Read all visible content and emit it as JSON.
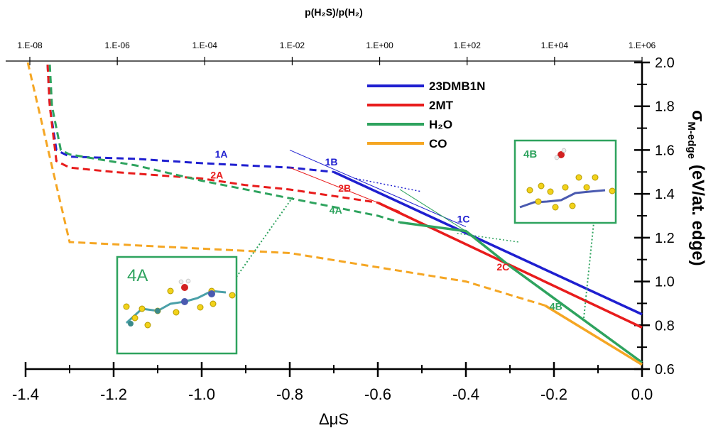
{
  "chart_data": {
    "type": "line",
    "top_axis_label": "p(H₂S)/p(H₂)",
    "top_ticks": [
      "1.E-08",
      "1.E-06",
      "1.E-04",
      "1.E-02",
      "1.E+00",
      "1.E+02",
      "1.E+04",
      "1.E+06"
    ],
    "xlabel": "ΔμS",
    "ylabel_symbol": "σ",
    "ylabel_sub": "M-edge",
    "ylabel_units": "(eV/at. edge)",
    "xlim": [
      -1.4,
      0.0
    ],
    "ylim": [
      0.6,
      2.0
    ],
    "xticks": [
      "-1.4",
      "-1.2",
      "-1.0",
      "-0.8",
      "-0.6",
      "-0.4",
      "-0.2",
      "0.0"
    ],
    "yticks": [
      "0.6",
      "0.8",
      "1.0",
      "1.2",
      "1.4",
      "1.6",
      "1.8",
      "2.0"
    ],
    "legend_position": "top-center",
    "series": [
      {
        "name": "23DMB1N",
        "color": "#1f1fd0",
        "dashed": [
          [
            -1.35,
            1.99
          ],
          [
            -1.345,
            1.8
          ],
          [
            -1.33,
            1.6
          ],
          [
            -1.3,
            1.57
          ],
          [
            -1.15,
            1.56
          ],
          [
            -1.0,
            1.54
          ],
          [
            -0.9,
            1.53
          ],
          [
            -0.8,
            1.52
          ],
          [
            -0.7,
            1.5
          ]
        ],
        "solid": [
          [
            -0.7,
            1.5
          ],
          [
            0.0,
            0.85
          ]
        ]
      },
      {
        "name": "2MT",
        "color": "#e81c1c",
        "dashed": [
          [
            -1.35,
            1.99
          ],
          [
            -1.345,
            1.8
          ],
          [
            -1.33,
            1.55
          ],
          [
            -1.3,
            1.52
          ],
          [
            -1.2,
            1.5
          ],
          [
            -1.0,
            1.47
          ],
          [
            -0.9,
            1.44
          ],
          [
            -0.8,
            1.42
          ],
          [
            -0.7,
            1.39
          ],
          [
            -0.6,
            1.36
          ]
        ],
        "solid": [
          [
            -0.6,
            1.36
          ],
          [
            0.0,
            0.79
          ]
        ]
      },
      {
        "name": "H₂O",
        "color": "#2ea35e",
        "dashed": [
          [
            -1.345,
            1.99
          ],
          [
            -1.34,
            1.8
          ],
          [
            -1.32,
            1.6
          ],
          [
            -1.3,
            1.58
          ],
          [
            -1.15,
            1.53
          ],
          [
            -1.0,
            1.46
          ],
          [
            -0.8,
            1.38
          ],
          [
            -0.6,
            1.3
          ],
          [
            -0.55,
            1.27
          ]
        ],
        "solid": [
          [
            -0.55,
            1.27
          ],
          [
            -0.4,
            1.23
          ],
          [
            -0.3,
            1.07
          ],
          [
            0.0,
            0.63
          ]
        ]
      },
      {
        "name": "CO",
        "color": "#f5a623",
        "dashed": [
          [
            -1.395,
            2.0
          ],
          [
            -1.3,
            1.18
          ],
          [
            -0.8,
            1.13
          ],
          [
            -0.4,
            1.0
          ],
          [
            -0.22,
            0.89
          ]
        ],
        "solid": [
          [
            -0.22,
            0.89
          ],
          [
            0.0,
            0.62
          ]
        ]
      }
    ],
    "annotations": [
      {
        "text": "1A",
        "x": -0.97,
        "y": 1.565,
        "color": "#1f1fd0"
      },
      {
        "text": "2A",
        "x": -0.98,
        "y": 1.47,
        "color": "#e81c1c"
      },
      {
        "text": "1B",
        "x": -0.72,
        "y": 1.53,
        "color": "#1f1fd0"
      },
      {
        "text": "2B",
        "x": -0.69,
        "y": 1.41,
        "color": "#e81c1c"
      },
      {
        "text": "4A",
        "x": -0.71,
        "y": 1.31,
        "color": "#2ea35e"
      },
      {
        "text": "1C",
        "x": -0.42,
        "y": 1.27,
        "color": "#1f1fd0"
      },
      {
        "text": "2C",
        "x": -0.33,
        "y": 1.05,
        "color": "#e81c1c"
      },
      {
        "text": "4B",
        "x": -0.21,
        "y": 0.87,
        "color": "#2ea35e"
      }
    ],
    "inset_labels": {
      "left": "4A",
      "right": "4B"
    }
  }
}
